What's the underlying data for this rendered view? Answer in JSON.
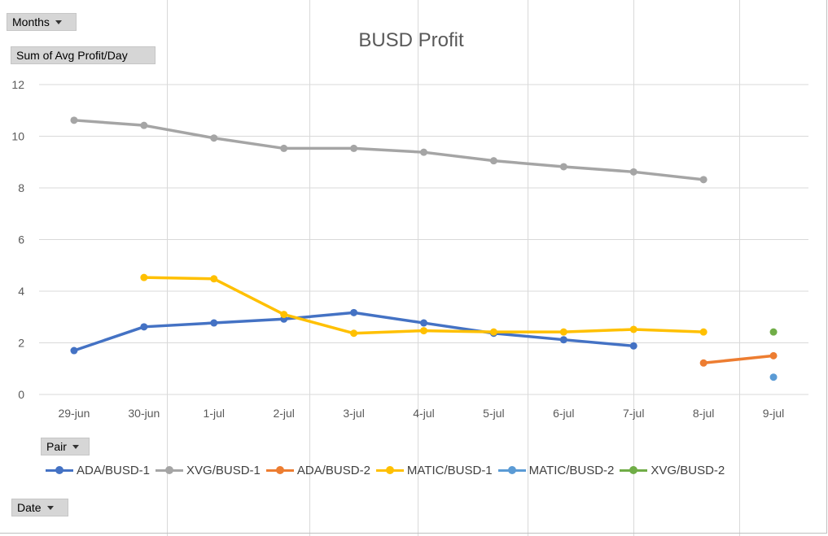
{
  "pivot_buttons": {
    "months": "Months",
    "value_field": "Sum of Avg Profit/Day",
    "pair": "Pair",
    "date": "Date"
  },
  "chart_data": {
    "type": "line",
    "title": "BUSD Profit",
    "xlabel": "",
    "ylabel": "",
    "categories": [
      "29-jun",
      "30-jun",
      "1-jul",
      "2-jul",
      "3-jul",
      "4-jul",
      "5-jul",
      "6-jul",
      "7-jul",
      "8-jul",
      "9-jul"
    ],
    "ylim": [
      0,
      12
    ],
    "yticks": [
      0,
      2,
      4,
      6,
      8,
      10,
      12
    ],
    "grid": true,
    "legend_position": "bottom",
    "series": [
      {
        "name": "ADA/BUSD-1",
        "color": "#4472C4",
        "values": [
          1.7,
          2.62,
          2.77,
          2.92,
          3.17,
          2.77,
          2.37,
          2.12,
          1.88,
          null,
          null
        ]
      },
      {
        "name": "XVG/BUSD-1",
        "color": "#A5A5A5",
        "values": [
          10.62,
          10.42,
          9.93,
          9.53,
          9.53,
          9.38,
          9.05,
          8.82,
          8.62,
          8.32,
          null
        ]
      },
      {
        "name": "ADA/BUSD-2",
        "color": "#ED7D31",
        "values": [
          null,
          null,
          null,
          null,
          null,
          null,
          null,
          null,
          null,
          1.22,
          1.5
        ]
      },
      {
        "name": "MATIC/BUSD-1",
        "color": "#FFC000",
        "values": [
          null,
          4.53,
          4.48,
          3.1,
          2.37,
          2.47,
          2.42,
          2.42,
          2.52,
          2.42,
          null
        ]
      },
      {
        "name": "MATIC/BUSD-2",
        "color": "#5B9BD5",
        "values": [
          null,
          null,
          null,
          null,
          null,
          null,
          null,
          null,
          null,
          null,
          0.67
        ]
      },
      {
        "name": "XVG/BUSD-2",
        "color": "#70AD47",
        "values": [
          null,
          null,
          null,
          null,
          null,
          null,
          null,
          null,
          null,
          null,
          2.42
        ]
      }
    ]
  }
}
